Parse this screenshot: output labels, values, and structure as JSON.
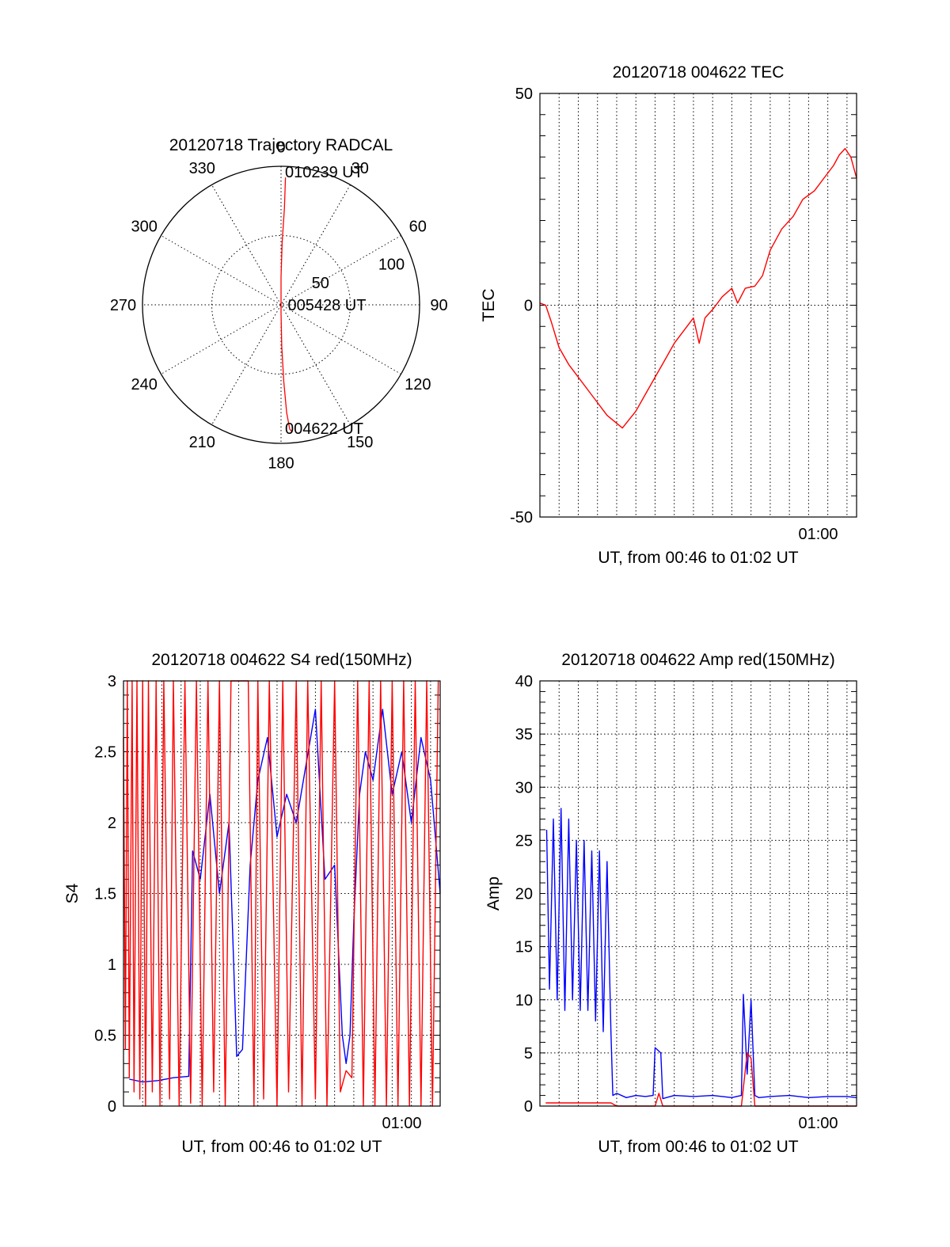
{
  "chart_data": [
    {
      "id": "trajectory",
      "type": "polar",
      "title": "20120718 Trajectory RADCAL",
      "angle_labels": [
        "0",
        "30",
        "60",
        "90",
        "120",
        "150",
        "180",
        "210",
        "240",
        "270",
        "300",
        "330"
      ],
      "radius_labels": [
        "50",
        "100"
      ],
      "rmax": 100,
      "annotations": [
        {
          "text": "010239 UT",
          "az": 0,
          "r": 92
        },
        {
          "text": "005428 UT",
          "az": 90,
          "r": 2
        },
        {
          "text": "004622 UT",
          "az": 180,
          "r": 92
        }
      ],
      "track": {
        "color": "#ff0000",
        "points": [
          [
            2,
            92
          ],
          [
            2,
            70
          ],
          [
            1,
            45
          ],
          [
            0,
            20
          ],
          [
            0,
            3
          ],
          [
            180,
            6
          ],
          [
            179,
            30
          ],
          [
            178,
            55
          ],
          [
            177,
            78
          ],
          [
            176,
            90
          ],
          [
            175,
            92
          ]
        ]
      }
    },
    {
      "id": "tec",
      "type": "line",
      "title": "20120718 004622 TEC",
      "xlabel": "UT, from 00:46 to 01:02 UT",
      "ylabel": "TEC",
      "x_tick_labels": [
        {
          "x": 14.5,
          "label": "01:00"
        }
      ],
      "xlim": [
        0,
        16.5
      ],
      "ylim": [
        -50,
        50
      ],
      "y_ticks": [
        -50,
        0,
        50
      ],
      "series": [
        {
          "color": "#ff0000",
          "x": [
            0.0,
            0.3,
            0.6,
            1.0,
            1.5,
            2.0,
            2.5,
            3.0,
            3.5,
            3.9,
            4.3,
            5.0,
            5.5,
            6.0,
            6.5,
            7.0,
            7.5,
            8.0,
            8.3,
            8.6,
            9.0,
            9.5,
            10.0,
            10.3,
            10.7,
            11.2,
            11.6,
            12.0,
            12.6,
            13.2,
            13.7,
            14.3,
            14.8,
            15.3,
            15.6,
            15.9,
            16.2,
            16.5
          ],
          "y": [
            0.5,
            0.0,
            -4,
            -10,
            -14,
            -17,
            -20,
            -23,
            -26,
            -27.5,
            -29,
            -25,
            -21,
            -17,
            -13,
            -9,
            -6,
            -3,
            -9,
            -3,
            -1,
            2,
            4,
            0.5,
            4,
            4.5,
            7,
            13,
            18,
            21,
            25,
            27,
            30,
            33,
            35.5,
            37,
            35,
            30
          ]
        }
      ]
    },
    {
      "id": "s4",
      "type": "line",
      "title": "20120718 004622 S4 red(150MHz)",
      "xlabel": "UT, from 00:46 to 01:02 UT",
      "ylabel": "S4",
      "x_tick_labels": [
        {
          "x": 14.5,
          "label": "01:00"
        }
      ],
      "xlim": [
        0,
        16.5
      ],
      "ylim": [
        0,
        3
      ],
      "y_ticks": [
        0,
        0.5,
        1,
        1.5,
        2,
        2.5,
        3
      ],
      "series": [
        {
          "color": "#0000ff",
          "x": [
            0.3,
            1.0,
            1.8,
            2.6,
            3.4,
            3.6,
            4.0,
            4.5,
            5.0,
            5.5,
            5.9,
            6.2,
            6.6,
            7.0,
            7.5,
            8.0,
            8.5,
            9.0,
            9.5,
            10.0,
            10.5,
            11.0,
            11.4,
            11.6,
            11.8,
            12.0,
            12.3,
            12.6,
            13.0,
            13.5,
            14.0,
            14.5,
            15.0,
            15.5,
            16.0,
            16.5
          ],
          "y": [
            0.19,
            0.17,
            0.18,
            0.2,
            0.21,
            1.8,
            1.6,
            2.2,
            1.5,
            2.0,
            0.35,
            0.4,
            1.7,
            2.3,
            2.6,
            1.9,
            2.2,
            2.0,
            2.4,
            2.8,
            1.6,
            1.7,
            0.5,
            0.3,
            0.5,
            1.3,
            2.2,
            2.5,
            2.3,
            2.8,
            2.2,
            2.5,
            2.0,
            2.6,
            2.3,
            1.5
          ]
        },
        {
          "color": "#ff0000",
          "x": [
            0.0,
            0.1,
            0.2,
            0.3,
            0.45,
            0.55,
            0.7,
            0.85,
            1.0,
            1.15,
            1.3,
            1.5,
            1.7,
            1.9,
            2.1,
            2.4,
            2.6,
            2.9,
            3.2,
            3.5,
            3.8,
            4.1,
            4.4,
            4.7,
            5.0,
            5.3,
            5.6,
            6.5,
            6.8,
            7.0,
            7.3,
            7.6,
            8.0,
            8.3,
            8.6,
            9.0,
            9.3,
            9.6,
            10.0,
            10.3,
            10.6,
            11.0,
            11.3,
            11.6,
            11.9,
            12.2,
            12.5,
            12.8,
            13.1,
            13.4,
            13.7,
            14.0,
            14.3,
            14.6,
            14.9,
            15.2,
            15.5,
            15.8,
            16.1,
            16.4
          ],
          "y": [
            2.6,
            0.4,
            3.0,
            0.2,
            3.0,
            0.1,
            3.0,
            0.05,
            3.0,
            0.0,
            3.0,
            0.1,
            3.0,
            0.0,
            3.0,
            0.05,
            3.0,
            0.0,
            3.0,
            0.02,
            3.0,
            0.0,
            3.0,
            0.1,
            3.0,
            0.0,
            3.0,
            3.0,
            0.0,
            3.0,
            0.05,
            3.0,
            0.0,
            3.0,
            0.1,
            3.0,
            0.0,
            3.0,
            0.05,
            3.0,
            0.0,
            3.0,
            0.1,
            0.25,
            0.2,
            3.0,
            0.0,
            3.0,
            0.0,
            3.0,
            0.0,
            3.0,
            0.0,
            3.0,
            0.0,
            3.0,
            0.0,
            3.0,
            0.0,
            3.0
          ]
        }
      ]
    },
    {
      "id": "amp",
      "type": "line",
      "title": "20120718 004622 Amp red(150MHz)",
      "xlabel": "UT, from 00:46 to 01:02 UT",
      "ylabel": "Amp",
      "x_tick_labels": [
        {
          "x": 14.5,
          "label": "01:00"
        }
      ],
      "xlim": [
        0,
        16.5
      ],
      "ylim": [
        0,
        40
      ],
      "y_ticks": [
        0,
        5,
        10,
        15,
        20,
        25,
        30,
        35,
        40
      ],
      "series": [
        {
          "color": "#0000ff",
          "x": [
            0.35,
            0.5,
            0.7,
            0.9,
            1.1,
            1.3,
            1.5,
            1.7,
            1.9,
            2.1,
            2.3,
            2.5,
            2.7,
            2.9,
            3.1,
            3.3,
            3.5,
            3.7,
            3.8,
            4.0,
            4.5,
            5.0,
            5.5,
            5.9,
            6.0,
            6.3,
            6.4,
            7.0,
            8.0,
            9.0,
            10.0,
            10.5,
            10.6,
            10.8,
            11.0,
            11.2,
            11.4,
            12.0,
            13.0,
            14.0,
            15.0,
            16.0,
            16.5
          ],
          "y": [
            26,
            11,
            27,
            10,
            28,
            9,
            27,
            10,
            25,
            9,
            25,
            9,
            24,
            8,
            24,
            7,
            23,
            7,
            1,
            1.2,
            0.8,
            1.0,
            0.9,
            1.0,
            5.5,
            5.0,
            0.7,
            1.0,
            0.9,
            1.0,
            0.8,
            1.0,
            10.5,
            3.0,
            10.0,
            1.0,
            0.8,
            0.9,
            1.0,
            0.8,
            0.9,
            0.9,
            0.8
          ]
        },
        {
          "color": "#ff0000",
          "x": [
            0.3,
            1.0,
            2.0,
            3.0,
            3.7,
            4.0,
            6.0,
            6.2,
            6.4,
            10.5,
            10.8,
            11.0,
            11.2,
            12.0,
            16.5
          ],
          "y": [
            0.3,
            0.3,
            0.3,
            0.3,
            0.3,
            0.0,
            0.0,
            1.2,
            0.0,
            0.0,
            5.0,
            4.5,
            0.0,
            0.0,
            0.0
          ]
        }
      ]
    }
  ]
}
